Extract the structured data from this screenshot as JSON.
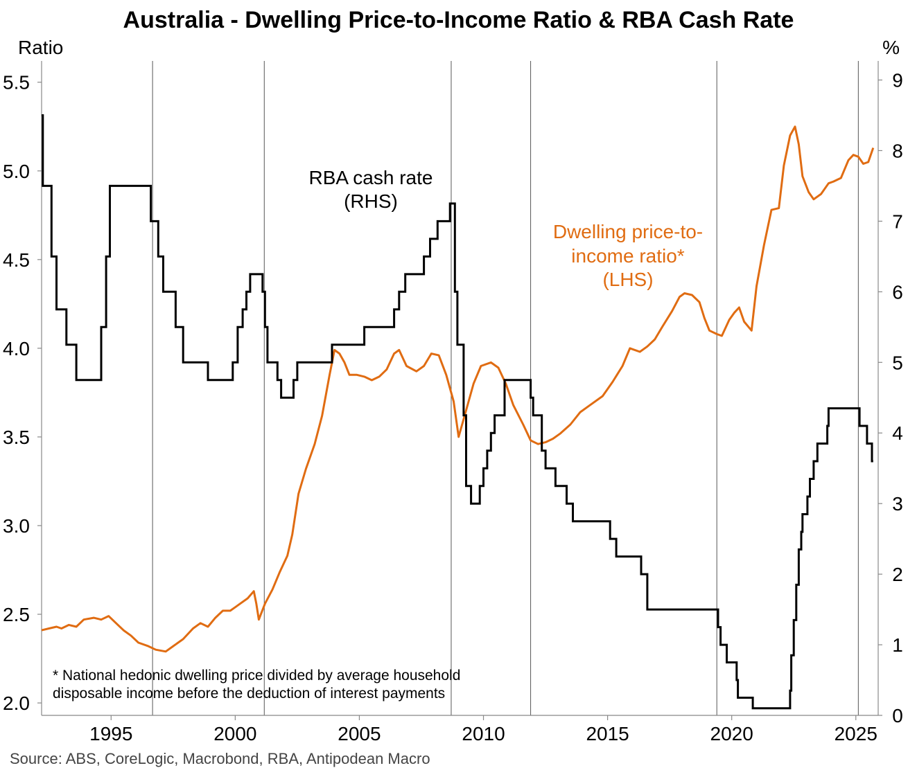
{
  "chart_data": {
    "type": "line",
    "title": "Australia - Dwelling Price-to-Income Ratio & RBA Cash Rate",
    "source": "Source: ABS, CoreLogic, Macrobond, RBA, Antipodean Macro",
    "left_axis": {
      "label": "Ratio",
      "range": [
        1.93,
        5.62
      ],
      "ticks": [
        "2.0",
        "2.5",
        "3.0",
        "3.5",
        "4.0",
        "4.5",
        "5.0",
        "5.5"
      ]
    },
    "right_axis": {
      "label": "%",
      "range": [
        0,
        9.27
      ],
      "ticks": [
        "0",
        "1",
        "2",
        "3",
        "4",
        "5",
        "6",
        "7",
        "8",
        "9"
      ]
    },
    "x_axis": {
      "range": [
        1992.2,
        2025.9
      ],
      "ticks": [
        "1995",
        "2000",
        "2005",
        "2010",
        "2015",
        "2020",
        "2025"
      ]
    },
    "grid": false,
    "vertical_markers": [
      1996.67,
      2001.17,
      2008.7,
      2011.9,
      2019.4,
      2025.1
    ],
    "annotations": {
      "cash_rate_label": [
        "RBA cash rate",
        "(RHS)"
      ],
      "ratio_label": [
        "Dwelling price-to-",
        "income ratio*",
        "(LHS)"
      ],
      "footnote": [
        "* National hedonic dwelling price divided by average household",
        "disposable income before the deduction of interest payments"
      ]
    },
    "colors": {
      "ratio": "#E06C12",
      "cash_rate": "#000000"
    },
    "series": [
      {
        "name": "RBA cash rate",
        "axis": "right",
        "step": true,
        "points": [
          [
            1992.2,
            8.5
          ],
          [
            1992.25,
            7.5
          ],
          [
            1992.6,
            6.5
          ],
          [
            1992.8,
            5.75
          ],
          [
            1993.2,
            5.25
          ],
          [
            1993.6,
            4.75
          ],
          [
            1994.6,
            5.5
          ],
          [
            1994.8,
            6.5
          ],
          [
            1994.95,
            7.5
          ],
          [
            1996.6,
            7.0
          ],
          [
            1996.9,
            6.5
          ],
          [
            1997.1,
            6.0
          ],
          [
            1997.6,
            5.5
          ],
          [
            1997.9,
            5.0
          ],
          [
            1998.9,
            4.75
          ],
          [
            1999.9,
            5.0
          ],
          [
            2000.1,
            5.5
          ],
          [
            2000.3,
            5.75
          ],
          [
            2000.45,
            6.0
          ],
          [
            2000.6,
            6.25
          ],
          [
            2001.1,
            6.0
          ],
          [
            2001.2,
            5.5
          ],
          [
            2001.3,
            5.0
          ],
          [
            2001.7,
            4.75
          ],
          [
            2001.85,
            4.5
          ],
          [
            2002.35,
            4.75
          ],
          [
            2002.5,
            5.0
          ],
          [
            2003.9,
            5.25
          ],
          [
            2005.2,
            5.5
          ],
          [
            2006.4,
            5.75
          ],
          [
            2006.6,
            6.0
          ],
          [
            2006.85,
            6.25
          ],
          [
            2007.6,
            6.5
          ],
          [
            2007.85,
            6.75
          ],
          [
            2008.15,
            7.0
          ],
          [
            2008.65,
            7.25
          ],
          [
            2008.85,
            6.0
          ],
          [
            2008.95,
            5.25
          ],
          [
            2009.2,
            4.25
          ],
          [
            2009.3,
            3.25
          ],
          [
            2009.5,
            3.0
          ],
          [
            2009.85,
            3.25
          ],
          [
            2010.0,
            3.5
          ],
          [
            2010.15,
            3.75
          ],
          [
            2010.3,
            4.0
          ],
          [
            2010.45,
            4.25
          ],
          [
            2010.85,
            4.75
          ],
          [
            2011.9,
            4.5
          ],
          [
            2012.0,
            4.25
          ],
          [
            2012.35,
            3.75
          ],
          [
            2012.5,
            3.5
          ],
          [
            2012.9,
            3.25
          ],
          [
            2013.35,
            3.0
          ],
          [
            2013.6,
            2.75
          ],
          [
            2015.1,
            2.5
          ],
          [
            2015.35,
            2.25
          ],
          [
            2016.35,
            2.0
          ],
          [
            2016.6,
            1.5
          ],
          [
            2019.45,
            1.25
          ],
          [
            2019.55,
            1.0
          ],
          [
            2019.8,
            0.75
          ],
          [
            2020.2,
            0.5
          ],
          [
            2020.25,
            0.25
          ],
          [
            2020.85,
            0.1
          ],
          [
            2022.35,
            0.35
          ],
          [
            2022.4,
            0.85
          ],
          [
            2022.5,
            1.35
          ],
          [
            2022.6,
            1.85
          ],
          [
            2022.7,
            2.35
          ],
          [
            2022.8,
            2.6
          ],
          [
            2022.85,
            2.85
          ],
          [
            2023.05,
            3.1
          ],
          [
            2023.15,
            3.35
          ],
          [
            2023.3,
            3.6
          ],
          [
            2023.45,
            3.85
          ],
          [
            2023.85,
            4.1
          ],
          [
            2023.9,
            4.35
          ],
          [
            2025.15,
            4.1
          ],
          [
            2025.45,
            3.85
          ],
          [
            2025.65,
            3.6
          ],
          [
            2025.7,
            3.6
          ]
        ]
      },
      {
        "name": "Dwelling price-to-income ratio*",
        "axis": "left",
        "step": false,
        "points": [
          [
            1992.2,
            2.41
          ],
          [
            1992.5,
            2.42
          ],
          [
            1992.8,
            2.43
          ],
          [
            1993.0,
            2.42
          ],
          [
            1993.3,
            2.44
          ],
          [
            1993.6,
            2.43
          ],
          [
            1993.9,
            2.47
          ],
          [
            1994.3,
            2.48
          ],
          [
            1994.6,
            2.47
          ],
          [
            1994.9,
            2.49
          ],
          [
            1995.2,
            2.45
          ],
          [
            1995.5,
            2.41
          ],
          [
            1995.8,
            2.38
          ],
          [
            1996.1,
            2.34
          ],
          [
            1996.5,
            2.32
          ],
          [
            1996.8,
            2.3
          ],
          [
            1997.2,
            2.29
          ],
          [
            1997.5,
            2.32
          ],
          [
            1997.9,
            2.36
          ],
          [
            1998.3,
            2.42
          ],
          [
            1998.6,
            2.45
          ],
          [
            1998.9,
            2.43
          ],
          [
            1999.2,
            2.48
          ],
          [
            1999.5,
            2.52
          ],
          [
            1999.8,
            2.52
          ],
          [
            2000.0,
            2.54
          ],
          [
            2000.2,
            2.56
          ],
          [
            2000.5,
            2.59
          ],
          [
            2000.75,
            2.63
          ],
          [
            2000.85,
            2.56
          ],
          [
            2000.95,
            2.47
          ],
          [
            2001.2,
            2.56
          ],
          [
            2001.5,
            2.64
          ],
          [
            2001.8,
            2.74
          ],
          [
            2002.1,
            2.83
          ],
          [
            2002.3,
            2.95
          ],
          [
            2002.55,
            3.18
          ],
          [
            2002.85,
            3.32
          ],
          [
            2003.2,
            3.46
          ],
          [
            2003.5,
            3.62
          ],
          [
            2003.8,
            3.85
          ],
          [
            2004.0,
            3.99
          ],
          [
            2004.2,
            3.97
          ],
          [
            2004.4,
            3.92
          ],
          [
            2004.6,
            3.85
          ],
          [
            2004.9,
            3.85
          ],
          [
            2005.2,
            3.84
          ],
          [
            2005.5,
            3.82
          ],
          [
            2005.8,
            3.84
          ],
          [
            2006.1,
            3.88
          ],
          [
            2006.4,
            3.97
          ],
          [
            2006.6,
            3.99
          ],
          [
            2006.9,
            3.9
          ],
          [
            2007.3,
            3.87
          ],
          [
            2007.6,
            3.9
          ],
          [
            2007.9,
            3.97
          ],
          [
            2008.2,
            3.96
          ],
          [
            2008.5,
            3.85
          ],
          [
            2008.8,
            3.7
          ],
          [
            2009.0,
            3.5
          ],
          [
            2009.3,
            3.65
          ],
          [
            2009.6,
            3.8
          ],
          [
            2009.9,
            3.9
          ],
          [
            2010.3,
            3.92
          ],
          [
            2010.6,
            3.89
          ],
          [
            2010.9,
            3.8
          ],
          [
            2011.2,
            3.68
          ],
          [
            2011.6,
            3.57
          ],
          [
            2011.9,
            3.48
          ],
          [
            2012.2,
            3.46
          ],
          [
            2012.5,
            3.47
          ],
          [
            2012.8,
            3.49
          ],
          [
            2013.1,
            3.52
          ],
          [
            2013.5,
            3.57
          ],
          [
            2013.9,
            3.64
          ],
          [
            2014.3,
            3.68
          ],
          [
            2014.8,
            3.73
          ],
          [
            2015.2,
            3.81
          ],
          [
            2015.6,
            3.9
          ],
          [
            2015.9,
            4.0
          ],
          [
            2016.3,
            3.98
          ],
          [
            2016.6,
            4.01
          ],
          [
            2016.9,
            4.05
          ],
          [
            2017.2,
            4.12
          ],
          [
            2017.6,
            4.21
          ],
          [
            2017.9,
            4.29
          ],
          [
            2018.1,
            4.31
          ],
          [
            2018.4,
            4.3
          ],
          [
            2018.7,
            4.26
          ],
          [
            2018.9,
            4.17
          ],
          [
            2019.1,
            4.1
          ],
          [
            2019.4,
            4.08
          ],
          [
            2019.6,
            4.07
          ],
          [
            2019.9,
            4.16
          ],
          [
            2020.1,
            4.2
          ],
          [
            2020.3,
            4.23
          ],
          [
            2020.5,
            4.15
          ],
          [
            2020.8,
            4.1
          ],
          [
            2021.0,
            4.35
          ],
          [
            2021.3,
            4.58
          ],
          [
            2021.6,
            4.78
          ],
          [
            2021.9,
            4.79
          ],
          [
            2022.1,
            5.03
          ],
          [
            2022.35,
            5.2
          ],
          [
            2022.55,
            5.25
          ],
          [
            2022.7,
            5.15
          ],
          [
            2022.85,
            4.97
          ],
          [
            2023.1,
            4.88
          ],
          [
            2023.3,
            4.84
          ],
          [
            2023.6,
            4.87
          ],
          [
            2023.9,
            4.93
          ],
          [
            2024.1,
            4.94
          ],
          [
            2024.4,
            4.96
          ],
          [
            2024.7,
            5.06
          ],
          [
            2024.9,
            5.09
          ],
          [
            2025.1,
            5.08
          ],
          [
            2025.3,
            5.04
          ],
          [
            2025.5,
            5.05
          ],
          [
            2025.7,
            5.13
          ]
        ]
      }
    ]
  }
}
